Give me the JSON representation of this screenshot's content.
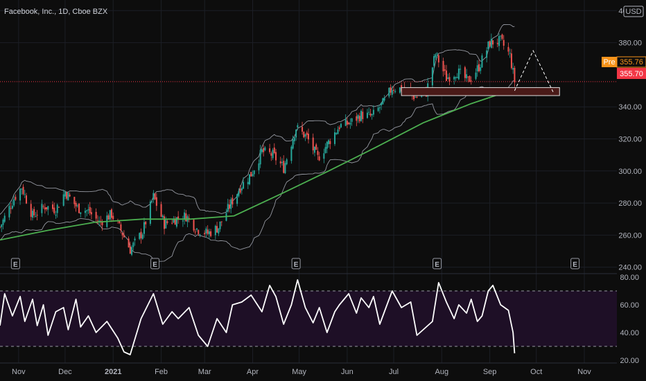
{
  "header": {
    "title": "Facebook, Inc., 1D, Cboe BZX"
  },
  "price_axis": {
    "currency": "USD",
    "tick_values": [
      240,
      260,
      280,
      300,
      320,
      340,
      380,
      400
    ],
    "tick_labels": [
      "240.00",
      "260.00",
      "280.00",
      "300.00",
      "320.00",
      "340.00",
      "380.00",
      "400.00"
    ]
  },
  "rsi_axis": {
    "tick_values": [
      20,
      40,
      60,
      80
    ],
    "tick_labels": [
      "20.00",
      "40.00",
      "60.00",
      "80.00"
    ]
  },
  "time_axis": {
    "labels": [
      "Nov",
      "Dec",
      "2021",
      "Feb",
      "Mar",
      "Apr",
      "May",
      "Jun",
      "Jul",
      "Aug",
      "Sep",
      "Oct",
      "Nov"
    ],
    "bold": [
      false,
      false,
      true,
      false,
      false,
      false,
      false,
      false,
      false,
      false,
      false,
      false,
      false
    ]
  },
  "tags": {
    "pre_label": "Pre",
    "pre_value": "355.76",
    "last_value": "355.70"
  },
  "earnings_marker": "E",
  "colors": {
    "background": "#0d0d0d",
    "up_candle": "#26a69a",
    "down_candle": "#ef5350",
    "ma_line": "#4caf50",
    "bollinger": "#9598a1",
    "rsi_line": "#ffffff",
    "rsi_band": "#1e0f26",
    "pre_tag": "#f7931a",
    "last_tag": "#f23645",
    "zone_fill": "#4a1a18",
    "zone_border": "#e0e0e0"
  },
  "chart_data": [
    {
      "type": "candlestick",
      "title": "Facebook, Inc., 1D, Cboe BZX",
      "xlabel": "",
      "ylabel": "USD",
      "ylim": [
        236,
        404
      ],
      "grid": true,
      "categories": [
        "Nov",
        "Dec",
        "2021",
        "Feb",
        "Mar",
        "Apr",
        "May",
        "Jun",
        "Jul",
        "Aug",
        "Sep",
        "Oct",
        "Nov"
      ],
      "close_path": [
        [
          "2020-10-20",
          265
        ],
        [
          "2020-10-29",
          283
        ],
        [
          "2020-11-03",
          290
        ],
        [
          "2020-11-10",
          272
        ],
        [
          "2020-11-18",
          278
        ],
        [
          "2020-11-25",
          276
        ],
        [
          "2020-12-01",
          287
        ],
        [
          "2020-12-09",
          277
        ],
        [
          "2020-12-16",
          275
        ],
        [
          "2020-12-23",
          268
        ],
        [
          "2020-12-31",
          273
        ],
        [
          "2021-01-06",
          263
        ],
        [
          "2021-01-12",
          251
        ],
        [
          "2021-01-20",
          262
        ],
        [
          "2021-01-27",
          284
        ],
        [
          "2021-02-03",
          267
        ],
        [
          "2021-02-10",
          270
        ],
        [
          "2021-02-17",
          272
        ],
        [
          "2021-02-24",
          264
        ],
        [
          "2021-03-03",
          261
        ],
        [
          "2021-03-10",
          265
        ],
        [
          "2021-03-17",
          278
        ],
        [
          "2021-03-24",
          290
        ],
        [
          "2021-03-31",
          298
        ],
        [
          "2021-04-07",
          312
        ],
        [
          "2021-04-14",
          310
        ],
        [
          "2021-04-21",
          302
        ],
        [
          "2021-04-29",
          327
        ],
        [
          "2021-05-06",
          321
        ],
        [
          "2021-05-13",
          308
        ],
        [
          "2021-05-20",
          318
        ],
        [
          "2021-05-27",
          328
        ],
        [
          "2021-06-03",
          330
        ],
        [
          "2021-06-10",
          335
        ],
        [
          "2021-06-17",
          334
        ],
        [
          "2021-06-24",
          342
        ],
        [
          "2021-06-30",
          352
        ],
        [
          "2021-07-07",
          351
        ],
        [
          "2021-07-15",
          346
        ],
        [
          "2021-07-22",
          349
        ],
        [
          "2021-07-28",
          373
        ],
        [
          "2021-08-04",
          358
        ],
        [
          "2021-08-11",
          362
        ],
        [
          "2021-08-18",
          356
        ],
        [
          "2021-08-25",
          365
        ],
        [
          "2021-09-01",
          380
        ],
        [
          "2021-09-08",
          381
        ],
        [
          "2021-09-14",
          372
        ],
        [
          "2021-09-17",
          356
        ]
      ],
      "moving_average": [
        [
          "2020-10-20",
          257
        ],
        [
          "2020-11-20",
          263
        ],
        [
          "2020-12-20",
          268
        ],
        [
          "2021-01-20",
          270
        ],
        [
          "2021-02-20",
          270
        ],
        [
          "2021-03-20",
          272
        ],
        [
          "2021-04-20",
          286
        ],
        [
          "2021-05-20",
          300
        ],
        [
          "2021-06-20",
          315
        ],
        [
          "2021-07-20",
          330
        ],
        [
          "2021-08-20",
          342
        ],
        [
          "2021-09-17",
          351
        ]
      ],
      "support_zone": {
        "low": 347,
        "high": 352
      },
      "projection": [
        [
          "2021-09-17",
          350
        ],
        [
          "2021-09-29",
          375
        ],
        [
          "2021-10-12",
          349
        ]
      ],
      "last_price": 355.7,
      "premarket_price": 355.76
    },
    {
      "type": "line",
      "title": "",
      "xlabel": "",
      "ylabel": "",
      "ylim": [
        18,
        82
      ],
      "bands": {
        "upper": 70,
        "lower": 30
      },
      "series": [
        {
          "values": [
            [
              "2020-10-20",
              45
            ],
            [
              "2020-10-23",
              68
            ],
            [
              "2020-10-28",
              52
            ],
            [
              "2020-11-02",
              66
            ],
            [
              "2020-11-05",
              48
            ],
            [
              "2020-11-10",
              64
            ],
            [
              "2020-11-13",
              45
            ],
            [
              "2020-11-17",
              60
            ],
            [
              "2020-11-20",
              38
            ],
            [
              "2020-11-25",
              55
            ],
            [
              "2020-11-30",
              58
            ],
            [
              "2020-12-03",
              42
            ],
            [
              "2020-12-08",
              64
            ],
            [
              "2020-12-11",
              44
            ],
            [
              "2020-12-16",
              52
            ],
            [
              "2020-12-21",
              40
            ],
            [
              "2020-12-28",
              48
            ],
            [
              "2021-01-04",
              36
            ],
            [
              "2021-01-08",
              26
            ],
            [
              "2021-01-12",
              24
            ],
            [
              "2021-01-19",
              50
            ],
            [
              "2021-01-27",
              68
            ],
            [
              "2021-02-02",
              46
            ],
            [
              "2021-02-08",
              55
            ],
            [
              "2021-02-12",
              50
            ],
            [
              "2021-02-19",
              58
            ],
            [
              "2021-02-25",
              38
            ],
            [
              "2021-03-03",
              30
            ],
            [
              "2021-03-09",
              50
            ],
            [
              "2021-03-15",
              40
            ],
            [
              "2021-03-19",
              60
            ],
            [
              "2021-03-25",
              62
            ],
            [
              "2021-03-31",
              67
            ],
            [
              "2021-04-07",
              55
            ],
            [
              "2021-04-12",
              74
            ],
            [
              "2021-04-16",
              66
            ],
            [
              "2021-04-21",
              46
            ],
            [
              "2021-04-26",
              60
            ],
            [
              "2021-04-30",
              78
            ],
            [
              "2021-05-05",
              58
            ],
            [
              "2021-05-10",
              47
            ],
            [
              "2021-05-14",
              58
            ],
            [
              "2021-05-19",
              40
            ],
            [
              "2021-05-24",
              55
            ],
            [
              "2021-05-27",
              60
            ],
            [
              "2021-06-02",
              68
            ],
            [
              "2021-06-07",
              54
            ],
            [
              "2021-06-10",
              65
            ],
            [
              "2021-06-15",
              58
            ],
            [
              "2021-06-18",
              66
            ],
            [
              "2021-06-22",
              46
            ],
            [
              "2021-06-25",
              55
            ],
            [
              "2021-06-30",
              70
            ],
            [
              "2021-07-06",
              58
            ],
            [
              "2021-07-12",
              62
            ],
            [
              "2021-07-16",
              38
            ],
            [
              "2021-07-20",
              42
            ],
            [
              "2021-07-26",
              48
            ],
            [
              "2021-07-30",
              76
            ],
            [
              "2021-08-04",
              62
            ],
            [
              "2021-08-09",
              50
            ],
            [
              "2021-08-12",
              60
            ],
            [
              "2021-08-17",
              54
            ],
            [
              "2021-08-20",
              64
            ],
            [
              "2021-08-24",
              48
            ],
            [
              "2021-08-27",
              52
            ],
            [
              "2021-08-31",
              70
            ],
            [
              "2021-09-03",
              74
            ],
            [
              "2021-09-08",
              60
            ],
            [
              "2021-09-13",
              56
            ],
            [
              "2021-09-16",
              40
            ],
            [
              "2021-09-17",
              25
            ]
          ]
        }
      ]
    }
  ]
}
